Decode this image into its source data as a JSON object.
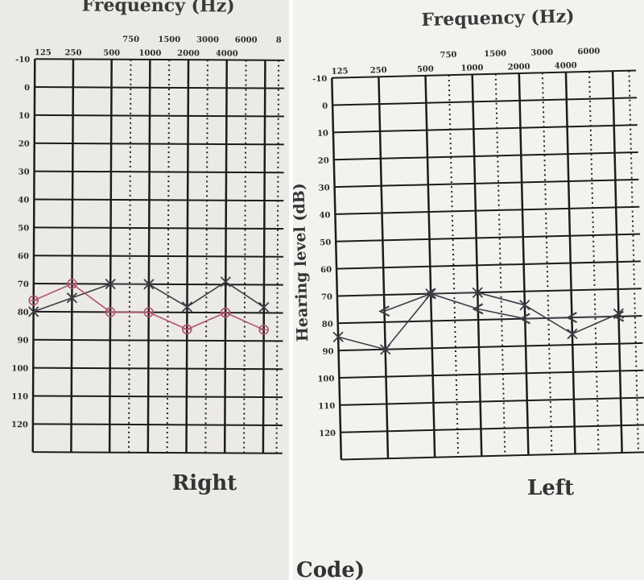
{
  "chart_data": [
    {
      "type": "line",
      "panel": "Right",
      "title": "Frequency (Hz)",
      "ylabel": "",
      "x_labels_top": [
        "750",
        "1500",
        "3000",
        "6000",
        "8"
      ],
      "x_labels_bottom": [
        "125",
        "250",
        "500",
        "1000",
        "2000",
        "4000"
      ],
      "y_ticks": [
        -10,
        0,
        10,
        20,
        30,
        40,
        50,
        60,
        70,
        80,
        90,
        100,
        110,
        120
      ],
      "ylim": [
        -10,
        130
      ],
      "grid": true,
      "footer": "Right",
      "series": [
        {
          "marker": "x",
          "color": "#3d3d45",
          "points": [
            {
              "x": "125",
              "y": 80
            },
            {
              "x": "250",
              "y": 75
            },
            {
              "x": "500",
              "y": 70
            },
            {
              "x": "1000",
              "y": 70
            },
            {
              "x": "2000",
              "y": 78
            },
            {
              "x": "4000",
              "y": 69
            },
            {
              "x": "8000",
              "y": 78
            }
          ]
        },
        {
          "marker": "o",
          "color": "#b0556a",
          "points": [
            {
              "x": "125",
              "y": 76
            },
            {
              "x": "250",
              "y": 70
            },
            {
              "x": "500",
              "y": 80
            },
            {
              "x": "1000",
              "y": 80
            },
            {
              "x": "2000",
              "y": 86
            },
            {
              "x": "4000",
              "y": 80
            },
            {
              "x": "8000",
              "y": 86
            }
          ]
        }
      ]
    },
    {
      "type": "line",
      "panel": "Left",
      "title": "Frequency (Hz)",
      "ylabel": "Hearing level (dB)",
      "x_labels_top": [
        "750",
        "1500",
        "3000",
        "6000"
      ],
      "x_labels_bottom": [
        "125",
        "250",
        "500",
        "1000",
        "2000",
        "4000"
      ],
      "y_ticks": [
        -10,
        0,
        10,
        20,
        30,
        40,
        50,
        60,
        70,
        80,
        90,
        100,
        110,
        120
      ],
      "ylim": [
        -10,
        130
      ],
      "grid": true,
      "footer": "Left",
      "series": [
        {
          "marker": "x",
          "color": "#3d3d45",
          "points": [
            {
              "x": "125",
              "y": 85
            },
            {
              "x": "250",
              "y": 90
            },
            {
              "x": "500",
              "y": 70
            },
            {
              "x": "1000",
              "y": 70
            },
            {
              "x": "2000",
              "y": 75
            },
            {
              "x": "4000",
              "y": 86
            },
            {
              "x": "8000",
              "y": 79
            }
          ]
        },
        {
          "marker": "<",
          "color": "#3d3d45",
          "points": [
            {
              "x": "250",
              "y": 76
            },
            {
              "x": "500",
              "y": 70
            },
            {
              "x": "1000",
              "y": 76
            },
            {
              "x": "2000",
              "y": 80
            },
            {
              "x": "4000",
              "y": 80
            },
            {
              "x": "8000",
              "y": 80
            }
          ]
        }
      ]
    }
  ],
  "footer_partial_text": "Code)"
}
